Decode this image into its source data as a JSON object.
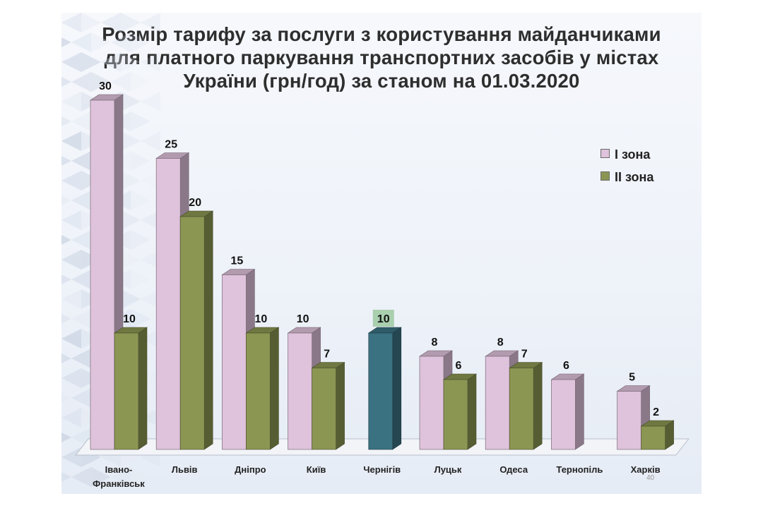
{
  "title_lines": [
    "Розмір тарифу за послуги з користування майданчиками",
    "для платного паркування транспортних засобів у містах",
    "України (грн/год) за станом на 01.03.2020"
  ],
  "slide_number": "40",
  "colors": {
    "zone1": "#dfc2db",
    "zone2": "#8c9653",
    "highlight": "#3b7282",
    "highlight_label_bg": "#a9cfae"
  },
  "chart_data": {
    "type": "bar",
    "title": "Розмір тарифу за послуги з користування майданчиками для платного паркування транспортних засобів у містах України (грн/год) за станом на 01.03.2020",
    "categories": [
      "Івано-Франківськ",
      "Львів",
      "Дніпро",
      "Київ",
      "Чернігів",
      "Луцьк",
      "Одеса",
      "Тернопіль",
      "Харків"
    ],
    "series": [
      {
        "name": "І зона",
        "values": [
          30,
          25,
          15,
          10,
          null,
          8,
          8,
          6,
          5
        ]
      },
      {
        "name": "ІІ зона",
        "values": [
          10,
          20,
          10,
          7,
          10,
          6,
          7,
          null,
          2
        ]
      }
    ],
    "ylim": [
      0,
      30
    ],
    "grid": false,
    "legend": "right",
    "style": "3d-clustered-column"
  }
}
